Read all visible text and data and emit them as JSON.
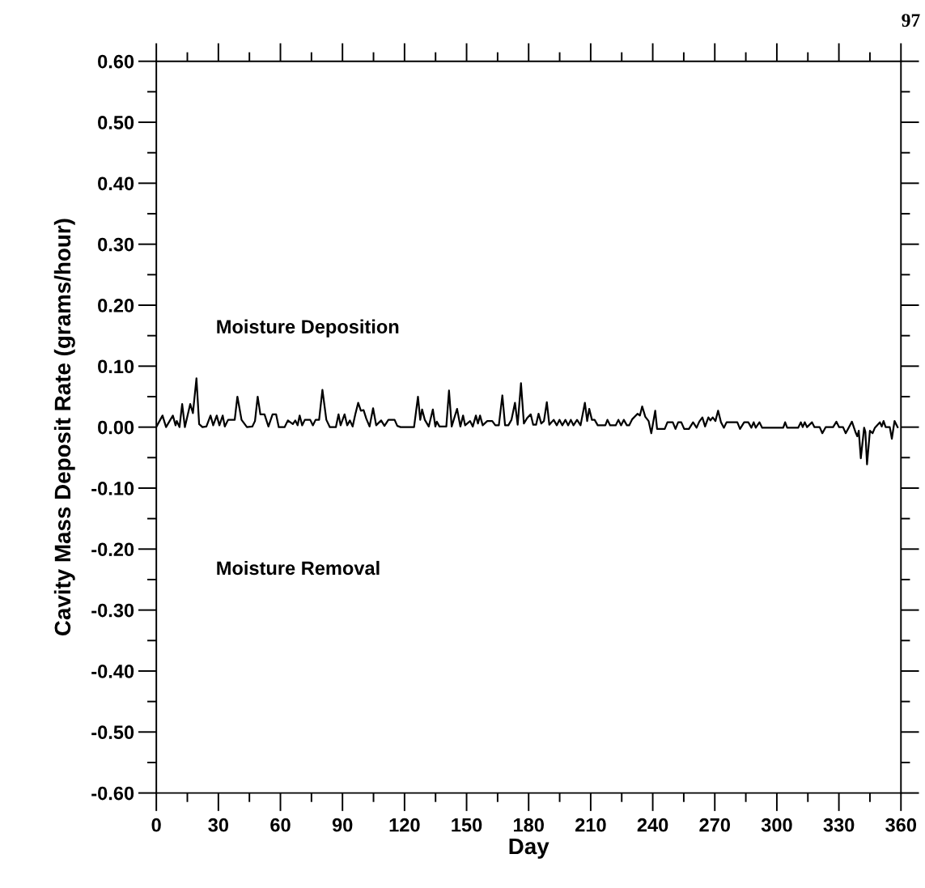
{
  "chart_data": {
    "type": "line",
    "xlabel": "Day",
    "ylabel": "Cavity Mass Deposit Rate (grams/hour)",
    "annotations": [
      "Moisture Deposition",
      "Moisture Removal",
      "97"
    ],
    "xlim": [
      0,
      360
    ],
    "ylim": [
      -0.6,
      0.6
    ],
    "xticks": [
      0,
      {
        "value": 15,
        "label": null
      },
      30,
      {
        "value": 45,
        "label": null
      },
      60,
      {
        "value": 75,
        "label": null
      },
      90,
      {
        "value": 105,
        "label": null
      },
      120,
      {
        "value": 135,
        "label": null
      },
      150,
      {
        "value": 165,
        "label": null
      },
      180,
      {
        "value": 195,
        "label": null
      },
      210,
      {
        "value": 225,
        "label": null
      },
      240,
      {
        "value": 255,
        "label": null
      },
      270,
      {
        "value": 285,
        "label": null
      },
      300,
      {
        "value": 315,
        "label": null
      },
      330,
      {
        "value": 345,
        "label": null
      },
      360
    ],
    "yticks": [
      {
        "value": -0.6,
        "label": "-0.60"
      },
      {
        "value": -0.55,
        "label": null
      },
      {
        "value": -0.5,
        "label": "-0.50"
      },
      {
        "value": -0.45,
        "label": null
      },
      {
        "value": -0.4,
        "label": "-0.40"
      },
      {
        "value": -0.35,
        "label": null
      },
      {
        "value": -0.3,
        "label": "-0.30"
      },
      {
        "value": -0.25,
        "label": null
      },
      {
        "value": -0.2,
        "label": "-0.20"
      },
      {
        "value": -0.15,
        "label": null
      },
      {
        "value": -0.1,
        "label": "-0.10"
      },
      {
        "value": -0.05,
        "label": null
      },
      {
        "value": 0,
        "label": "0.00"
      },
      {
        "value": 0.05,
        "label": null
      },
      {
        "value": 0.1,
        "label": "0.10"
      },
      {
        "value": 0.15,
        "label": null
      },
      {
        "value": 0.2,
        "label": "0.20"
      },
      {
        "value": 0.25,
        "label": null
      },
      {
        "value": 0.3,
        "label": "0.30"
      },
      {
        "value": 0.35,
        "label": null
      },
      {
        "value": 0.4,
        "label": "0.40"
      },
      {
        "value": 0.45,
        "label": null
      },
      {
        "value": 0.5,
        "label": "0.50"
      },
      {
        "value": 0.55,
        "label": null
      },
      {
        "value": 0.6,
        "label": "0.60"
      }
    ],
    "grid": false,
    "marker": "none",
    "line_style": "solid",
    "series": [
      {
        "color": "#000000",
        "x": [
          0.1,
          3.0,
          4.7,
          8.0,
          9.3,
          9.9,
          11.2,
          12.5,
          13.8,
          16.4,
          17.7,
          19.4,
          20.7,
          22.3,
          24.2,
          26.2,
          27.5,
          29.2,
          30.5,
          32.1,
          33.1,
          34.7,
          37.9,
          39.2,
          41.2,
          43.8,
          46.4,
          47.7,
          49.0,
          50.3,
          52.3,
          54.2,
          56.2,
          57.9,
          59.2,
          62.0,
          63.6,
          66.0,
          67.2,
          68.3,
          69.3,
          70.5,
          71.8,
          74.4,
          75.7,
          77.0,
          78.7,
          80.3,
          82.2,
          83.9,
          86.8,
          88.1,
          89.1,
          91.0,
          92.3,
          93.6,
          94.9,
          96.2,
          97.6,
          98.9,
          100.2,
          101.5,
          103.1,
          104.8,
          106.3,
          108.7,
          110.3,
          112.2,
          115.2,
          116.5,
          118.1,
          124.6,
          126.5,
          127.6,
          128.5,
          129.8,
          131.7,
          133.7,
          134.9,
          135.6,
          136.9,
          140.2,
          141.5,
          142.8,
          145.4,
          147.0,
          148.3,
          149.3,
          151.7,
          153.0,
          154.5,
          155.5,
          156.5,
          157.8,
          160.0,
          162.4,
          163.9,
          165.6,
          167.3,
          168.6,
          170.2,
          171.7,
          173.4,
          174.7,
          176.3,
          177.7,
          179.3,
          181.0,
          182.2,
          183.6,
          184.8,
          186.1,
          187.4,
          188.8,
          190.0,
          192.1,
          193.6,
          194.9,
          196.3,
          197.8,
          199.1,
          200.4,
          201.7,
          203.4,
          205.1,
          207.2,
          208.3,
          209.3,
          210.6,
          211.9,
          213.4,
          217.1,
          218.1,
          219.4,
          222.1,
          223.4,
          224.7,
          226.0,
          227.5,
          228.6,
          230.1,
          232.7,
          233.8,
          234.9,
          236.4,
          238.0,
          239.3,
          241.2,
          242.1,
          245.8,
          247.1,
          249.7,
          251.0,
          252.3,
          253.8,
          255.2,
          257.5,
          259.5,
          261.2,
          262.5,
          264.0,
          265.3,
          266.9,
          267.9,
          269.0,
          270.3,
          271.6,
          273.0,
          274.4,
          275.7,
          280.9,
          282.2,
          284.2,
          286.2,
          287.7,
          288.8,
          289.8,
          291.6,
          292.9,
          303.1,
          304.0,
          305.0,
          310.3,
          311.6,
          312.5,
          313.5,
          314.6,
          317.0,
          318.2,
          320.7,
          322.0,
          323.6,
          327.2,
          328.8,
          330.1,
          332.0,
          333.3,
          336.3,
          338.0,
          338.9,
          339.6,
          340.6,
          342.2,
          342.8,
          343.6,
          345.0,
          346.3,
          347.4,
          349.8,
          350.7,
          351.6,
          352.6,
          354.6,
          355.6,
          356.9,
          358.4
        ],
        "values": [
          0.001,
          0.019,
          0.0,
          0.019,
          0.003,
          0.01,
          0.0,
          0.038,
          0.0,
          0.038,
          0.023,
          0.08,
          0.005,
          0.0,
          0.001,
          0.019,
          0.003,
          0.019,
          0.003,
          0.019,
          0.001,
          0.012,
          0.012,
          0.05,
          0.012,
          0.0,
          0.001,
          0.01,
          0.05,
          0.021,
          0.021,
          0.001,
          0.021,
          0.021,
          0.0,
          0.0,
          0.011,
          0.005,
          0.011,
          0.003,
          0.019,
          0.003,
          0.012,
          0.012,
          0.003,
          0.012,
          0.012,
          0.061,
          0.012,
          0.0,
          0.0,
          0.021,
          0.003,
          0.021,
          0.003,
          0.011,
          0.001,
          0.021,
          0.04,
          0.027,
          0.028,
          0.014,
          0.001,
          0.031,
          0.003,
          0.011,
          0.002,
          0.012,
          0.012,
          0.002,
          0.0,
          0.0,
          0.05,
          0.012,
          0.029,
          0.012,
          0.001,
          0.029,
          0.001,
          0.009,
          0.001,
          0.001,
          0.06,
          0.001,
          0.03,
          0.001,
          0.019,
          0.003,
          0.01,
          0.001,
          0.019,
          0.006,
          0.019,
          0.003,
          0.01,
          0.01,
          0.003,
          0.003,
          0.052,
          0.003,
          0.003,
          0.012,
          0.04,
          0.004,
          0.072,
          0.006,
          0.015,
          0.021,
          0.004,
          0.004,
          0.022,
          0.006,
          0.01,
          0.041,
          0.004,
          0.012,
          0.003,
          0.012,
          0.003,
          0.012,
          0.003,
          0.012,
          0.003,
          0.012,
          0.003,
          0.04,
          0.01,
          0.03,
          0.012,
          0.012,
          0.003,
          0.003,
          0.012,
          0.003,
          0.003,
          0.012,
          0.003,
          0.012,
          0.003,
          0.003,
          0.013,
          0.022,
          0.019,
          0.034,
          0.017,
          0.01,
          -0.01,
          0.027,
          -0.003,
          -0.003,
          0.008,
          0.008,
          -0.003,
          0.008,
          0.008,
          -0.003,
          -0.003,
          0.008,
          -0.001,
          0.009,
          0.016,
          0.001,
          0.016,
          0.011,
          0.016,
          0.01,
          0.027,
          0.008,
          -0.001,
          0.008,
          0.008,
          -0.003,
          0.008,
          0.008,
          -0.001,
          0.008,
          -0.001,
          0.008,
          -0.001,
          -0.001,
          0.008,
          -0.001,
          -0.001,
          0.008,
          0.0,
          0.008,
          0.0,
          0.008,
          0.0,
          0.0,
          -0.01,
          0.0,
          0.0,
          0.009,
          0.0,
          0.0,
          -0.01,
          0.009,
          -0.008,
          -0.015,
          -0.006,
          -0.051,
          -0.001,
          -0.008,
          -0.061,
          -0.006,
          -0.01,
          -0.001,
          0.008,
          0.001,
          0.01,
          0.0,
          0.0,
          -0.019,
          0.01,
          0.0
        ]
      }
    ]
  }
}
